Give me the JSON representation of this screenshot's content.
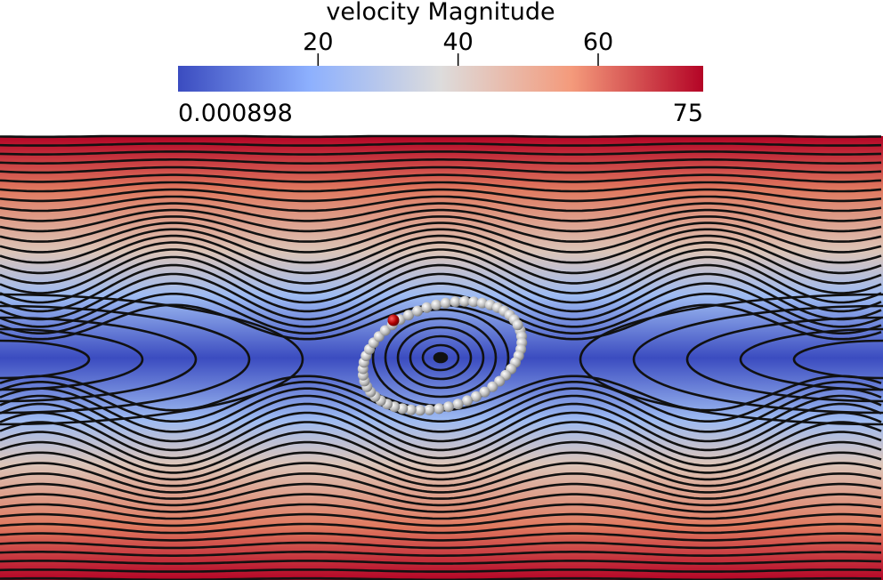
{
  "colorbar": {
    "title": "velocity Magnitude",
    "min": 0.000898,
    "max": 75,
    "ticks": [
      20,
      40,
      60
    ]
  }
}
